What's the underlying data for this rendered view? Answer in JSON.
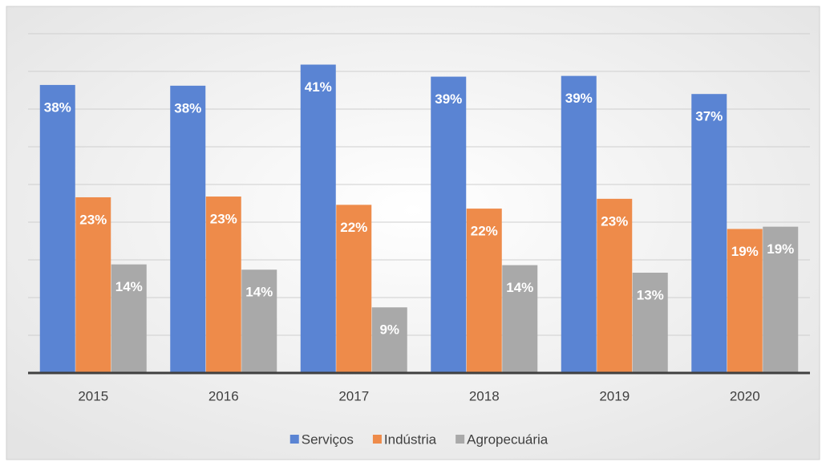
{
  "chart_data": {
    "type": "bar",
    "categories": [
      "2015",
      "2016",
      "2017",
      "2018",
      "2019",
      "2020"
    ],
    "series": [
      {
        "name": "Serviços",
        "color": "#5a84d3",
        "values": [
          38.2,
          38.1,
          40.9,
          39.3,
          39.4,
          37.0
        ],
        "value_labels": [
          "38%",
          "38%",
          "41%",
          "39%",
          "39%",
          "37%"
        ]
      },
      {
        "name": "Indústria",
        "color": "#ee8b4a",
        "values": [
          23.3,
          23.4,
          22.3,
          21.8,
          23.1,
          19.1
        ],
        "value_labels": [
          "23%",
          "23%",
          "22%",
          "22%",
          "23%",
          "19%"
        ]
      },
      {
        "name": "Agropecuária",
        "color": "#a9a9a9",
        "values": [
          14.4,
          13.7,
          8.7,
          14.3,
          13.3,
          19.4
        ],
        "value_labels": [
          "14%",
          "14%",
          "9%",
          "14%",
          "13%",
          "19%"
        ]
      }
    ],
    "ylim": [
      0,
      45
    ],
    "yticks": [
      0,
      5,
      10,
      15,
      20,
      25,
      30,
      35,
      40,
      45
    ],
    "grid": true,
    "legend": "bottom"
  }
}
